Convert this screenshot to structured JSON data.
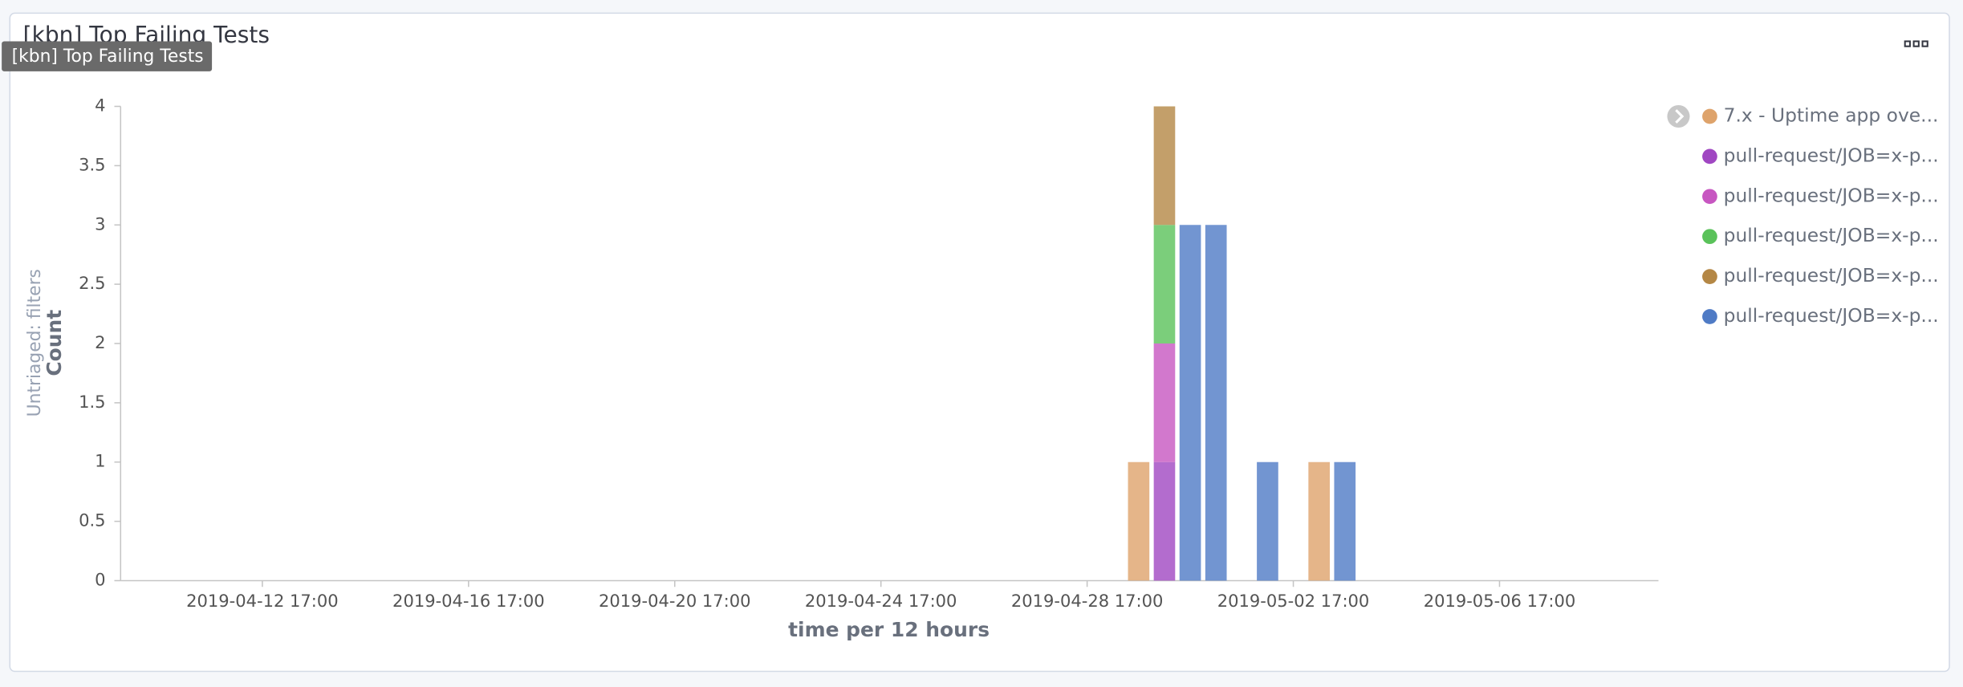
{
  "chart_data": {
    "type": "bar",
    "title": "[kbn] Top Failing Tests",
    "tooltip": "[kbn] Top Failing Tests",
    "split_label": "Untriaged: filters",
    "y_label": "Count",
    "x_label": "time per 12 hours",
    "stacked": true,
    "legend_position": "right",
    "grid": false,
    "x": [
      "2019-04-29 17:00",
      "2019-04-30 05:00",
      "2019-04-30 17:00",
      "2019-05-01 05:00",
      "2019-05-02 05:00",
      "2019-05-03 05:00",
      "2019-05-03 17:00"
    ],
    "xlim": [
      "2019-04-09 23:00",
      "2019-05-09 19:00"
    ],
    "xticks": [
      "2019-04-12 17:00",
      "2019-04-16 17:00",
      "2019-04-20 17:00",
      "2019-04-24 17:00",
      "2019-04-28 17:00",
      "2019-05-02 17:00",
      "2019-05-06 17:00"
    ],
    "ylim": [
      0,
      4
    ],
    "yticks": [
      0,
      0.5,
      1,
      1.5,
      2,
      2.5,
      3,
      3.5,
      4
    ],
    "series": [
      {
        "name": "7.x - Uptime app ove...",
        "color": "#dea36b",
        "values": [
          1,
          null,
          null,
          null,
          null,
          1,
          null
        ]
      },
      {
        "name": "pull-request/JOB=x-p...",
        "color": "#a047c2",
        "values": [
          null,
          1,
          null,
          null,
          null,
          null,
          null
        ]
      },
      {
        "name": "pull-request/JOB=x-p...",
        "color": "#c756c1",
        "values": [
          null,
          1,
          null,
          null,
          null,
          null,
          null
        ]
      },
      {
        "name": "pull-request/JOB=x-p...",
        "color": "#5ac25a",
        "values": [
          null,
          1,
          null,
          null,
          null,
          null,
          null
        ]
      },
      {
        "name": "pull-request/JOB=x-p...",
        "color": "#b48745",
        "values": [
          null,
          1,
          null,
          null,
          null,
          null,
          null
        ]
      },
      {
        "name": "pull-request/JOB=x-p...",
        "color": "#4f7bc5",
        "values": [
          null,
          null,
          3,
          3,
          1,
          null,
          1
        ]
      }
    ]
  }
}
